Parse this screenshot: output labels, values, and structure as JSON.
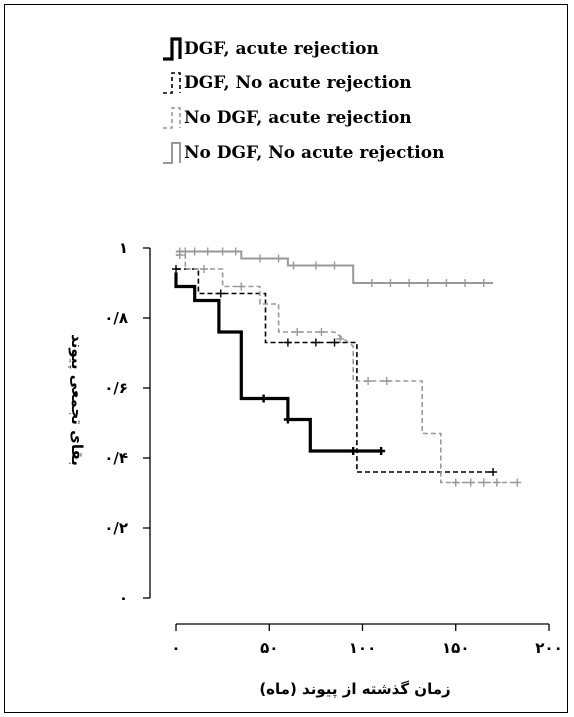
{
  "chart_data": {
    "type": "line",
    "subtype": "kaplan-meier step survival curves",
    "xlabel": "زمان گذشته از پیوند (ماه)",
    "ylabel": "بقای تجمعی پیوند",
    "xlim": [
      0,
      200
    ],
    "ylim": [
      0,
      1
    ],
    "x_ticks": [
      0,
      50,
      100,
      150,
      200
    ],
    "x_tick_labels": [
      "۰",
      "۵۰",
      "۱۰۰",
      "۱۵۰",
      "۲۰۰"
    ],
    "y_ticks": [
      0,
      0.2,
      0.4,
      0.6,
      0.8,
      1
    ],
    "y_tick_labels": [
      "۰",
      "۰/۲",
      "۰/۴",
      "۰/۶",
      "۰/۸",
      "۱"
    ],
    "grid": false,
    "legend_position": "top-left",
    "series": [
      {
        "name": "DGF, acute rejection",
        "color": "#000000",
        "style": "solid-thick",
        "steps": [
          [
            0,
            0.93
          ],
          [
            0,
            0.89
          ],
          [
            10,
            0.89
          ],
          [
            10,
            0.85
          ],
          [
            23,
            0.85
          ],
          [
            23,
            0.76
          ],
          [
            35,
            0.76
          ],
          [
            35,
            0.57
          ],
          [
            47,
            0.57
          ],
          [
            60,
            0.57
          ],
          [
            60,
            0.51
          ],
          [
            72,
            0.51
          ],
          [
            72,
            0.42
          ],
          [
            95,
            0.42
          ],
          [
            110,
            0.42
          ]
        ],
        "censor_marks": [
          [
            47,
            0.57
          ],
          [
            60,
            0.51
          ],
          [
            95,
            0.42
          ],
          [
            110,
            0.42
          ]
        ]
      },
      {
        "name": "DGF, No acute rejection",
        "color": "#000000",
        "style": "dashed",
        "steps": [
          [
            0,
            0.94
          ],
          [
            12,
            0.94
          ],
          [
            12,
            0.87
          ],
          [
            24,
            0.87
          ],
          [
            48,
            0.87
          ],
          [
            48,
            0.73
          ],
          [
            75,
            0.73
          ],
          [
            97,
            0.73
          ],
          [
            97,
            0.36
          ],
          [
            170,
            0.36
          ]
        ],
        "censor_marks": [
          [
            0,
            0.94
          ],
          [
            24,
            0.87
          ],
          [
            60,
            0.73
          ],
          [
            75,
            0.73
          ],
          [
            85,
            0.73
          ],
          [
            170,
            0.36
          ]
        ]
      },
      {
        "name": "No DGF, acute rejection",
        "color": "#999999",
        "style": "dashed",
        "steps": [
          [
            0,
            0.98
          ],
          [
            5,
            0.98
          ],
          [
            5,
            0.94
          ],
          [
            25,
            0.94
          ],
          [
            25,
            0.89
          ],
          [
            45,
            0.89
          ],
          [
            45,
            0.84
          ],
          [
            55,
            0.84
          ],
          [
            55,
            0.76
          ],
          [
            75,
            0.76
          ],
          [
            85,
            0.76
          ],
          [
            95,
            0.72
          ],
          [
            95,
            0.62
          ],
          [
            120,
            0.62
          ],
          [
            132,
            0.62
          ],
          [
            132,
            0.47
          ],
          [
            142,
            0.47
          ],
          [
            142,
            0.33
          ],
          [
            183,
            0.33
          ]
        ],
        "censor_marks": [
          [
            2,
            0.98
          ],
          [
            15,
            0.94
          ],
          [
            35,
            0.89
          ],
          [
            65,
            0.76
          ],
          [
            78,
            0.76
          ],
          [
            88,
            0.74
          ],
          [
            103,
            0.62
          ],
          [
            113,
            0.62
          ],
          [
            150,
            0.33
          ],
          [
            158,
            0.33
          ],
          [
            165,
            0.33
          ],
          [
            172,
            0.33
          ],
          [
            183,
            0.33
          ]
        ]
      },
      {
        "name": "No DGF, No acute rejection",
        "color": "#999999",
        "style": "solid",
        "steps": [
          [
            0,
            0.99
          ],
          [
            35,
            0.99
          ],
          [
            35,
            0.97
          ],
          [
            60,
            0.97
          ],
          [
            60,
            0.95
          ],
          [
            95,
            0.95
          ],
          [
            95,
            0.93
          ],
          [
            95,
            0.93
          ],
          [
            95,
            0.9
          ],
          [
            170,
            0.9
          ]
        ],
        "censor_marks": [
          [
            2,
            0.99
          ],
          [
            5,
            0.99
          ],
          [
            10,
            0.99
          ],
          [
            17,
            0.99
          ],
          [
            25,
            0.99
          ],
          [
            32,
            0.99
          ],
          [
            45,
            0.97
          ],
          [
            55,
            0.97
          ],
          [
            63,
            0.95
          ],
          [
            75,
            0.95
          ],
          [
            85,
            0.95
          ],
          [
            105,
            0.9
          ],
          [
            115,
            0.9
          ],
          [
            125,
            0.9
          ],
          [
            135,
            0.9
          ],
          [
            145,
            0.9
          ],
          [
            155,
            0.9
          ],
          [
            165,
            0.9
          ]
        ]
      }
    ]
  }
}
